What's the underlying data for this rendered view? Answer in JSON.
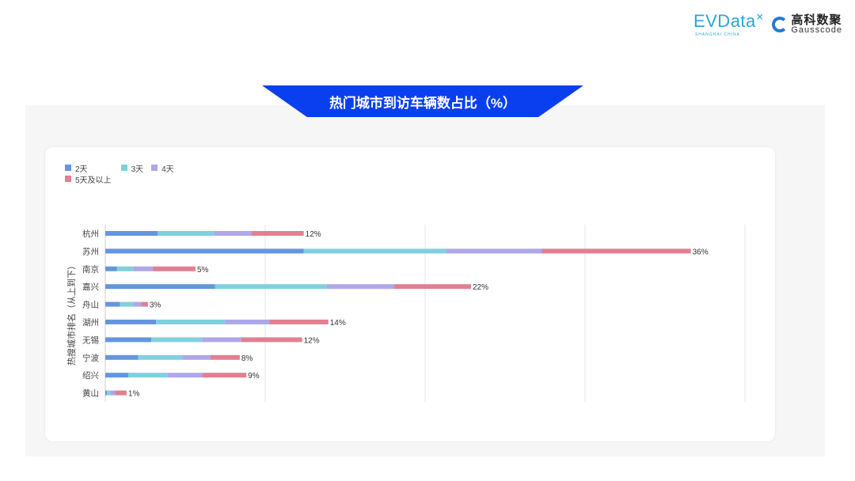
{
  "logos": {
    "evdata": "EVData",
    "evdata_sub": "SHANGHAI CHINA",
    "gauss_cn": "高科数聚",
    "gauss_en": "Gausscode"
  },
  "title": "热门城市到访车辆数占比（%）",
  "chart_data": {
    "type": "bar",
    "orientation": "horizontal",
    "stacked": true,
    "title": "热门城市到访车辆数占比（%）",
    "ylabel": "热搜城市排名（从上到下）",
    "xlabel": "",
    "xlim": [
      0,
      39
    ],
    "grid": true,
    "legend_position": "top-left",
    "categories": [
      "杭州",
      "苏州",
      "南京",
      "嘉兴",
      "舟山",
      "湖州",
      "无锡",
      "宁波",
      "绍兴",
      "黄山"
    ],
    "series": [
      {
        "name": "2天",
        "color": "#6596dd",
        "values": [
          3.2,
          12.1,
          0.7,
          6.7,
          0.9,
          3.1,
          2.8,
          2.0,
          1.4,
          0.1
        ]
      },
      {
        "name": "3天",
        "color": "#7fd0dc",
        "values": [
          3.4,
          8.7,
          1.0,
          6.8,
          0.8,
          4.2,
          3.1,
          2.7,
          2.4,
          0.2
        ]
      },
      {
        "name": "4天",
        "color": "#aea7ea",
        "values": [
          2.3,
          5.8,
          1.2,
          4.1,
          0.5,
          2.7,
          2.4,
          1.7,
          2.1,
          0.3
        ]
      },
      {
        "name": "5天及以上",
        "color": "#e08091",
        "values": [
          3.2,
          9.1,
          2.6,
          4.7,
          0.4,
          3.6,
          3.7,
          1.8,
          2.7,
          0.7
        ]
      }
    ],
    "total_labels": [
      "12%",
      "36%",
      "5%",
      "22%",
      "3%",
      "14%",
      "12%",
      "8%",
      "9%",
      "1%"
    ]
  }
}
